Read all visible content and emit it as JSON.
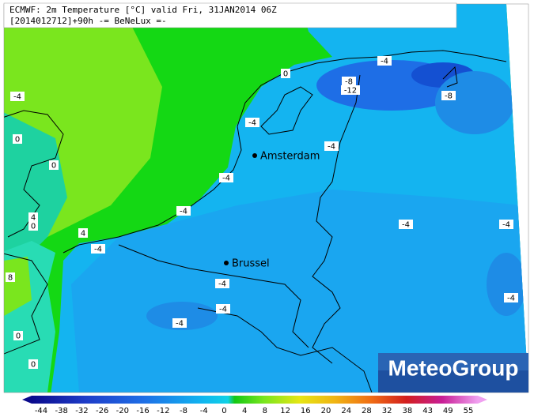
{
  "header": {
    "line1": "ECMWF: 2m Temperature [°C] valid Fri, 31JAN2014 06Z",
    "line2": "[2014012712]+90h -= BeNeLux =-"
  },
  "cities": [
    {
      "name": "Amsterdam"
    },
    {
      "name": "Brussel"
    }
  ],
  "contour_labels": [
    "0",
    "-4",
    "-8",
    "-12",
    "-8",
    "-4",
    "-4",
    "-4",
    "0",
    "0",
    "-4",
    "-4",
    "4",
    "0",
    "4",
    "-4",
    "-4",
    "-4",
    "8",
    "-4",
    "-4",
    "-4",
    "-4",
    "0",
    "0"
  ],
  "logo": "MeteoGroup",
  "colorbar": {
    "ticks": [
      -44,
      -38,
      -32,
      -26,
      -20,
      -16,
      -12,
      -8,
      -4,
      0,
      4,
      8,
      12,
      16,
      20,
      24,
      28,
      32,
      38,
      43,
      49,
      55
    ]
  }
}
